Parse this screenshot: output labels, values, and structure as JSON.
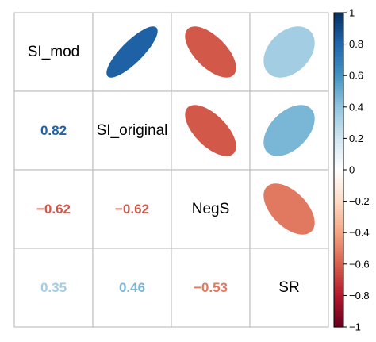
{
  "chart_data": {
    "type": "heatmap",
    "variables": [
      "SI_mod",
      "SI_original",
      "NegS",
      "SR"
    ],
    "matrix": [
      [
        1.0,
        0.82,
        -0.62,
        0.35
      ],
      [
        0.82,
        1.0,
        -0.62,
        0.46
      ],
      [
        -0.62,
        -0.62,
        1.0,
        -0.53
      ],
      [
        0.35,
        0.46,
        -0.53,
        1.0
      ]
    ],
    "upper": "ellipse",
    "lower": "number",
    "diagonal": "variable-name",
    "color_scale": {
      "min": -1,
      "max": 1,
      "ticks": [
        1,
        0.8,
        0.6,
        0.4,
        0.2,
        0,
        -0.2,
        -0.4,
        -0.6,
        -0.8,
        -1
      ],
      "tick_labels": [
        "1",
        "0.8",
        "0.6",
        "0.4",
        "0.2",
        "0",
        "−0.2",
        "−0.4",
        "−0.6",
        "−0.8",
        "−1"
      ],
      "colors": [
        "#67001F",
        "#B2182B",
        "#D6604D",
        "#F4A582",
        "#FDDBC7",
        "#FFFFFF",
        "#D1E5F0",
        "#92C5DE",
        "#4393C3",
        "#2166AC",
        "#053061"
      ]
    },
    "legend": "right",
    "grid": true,
    "grid_color": "#c0c0c0",
    "negative_sign": "−"
  }
}
